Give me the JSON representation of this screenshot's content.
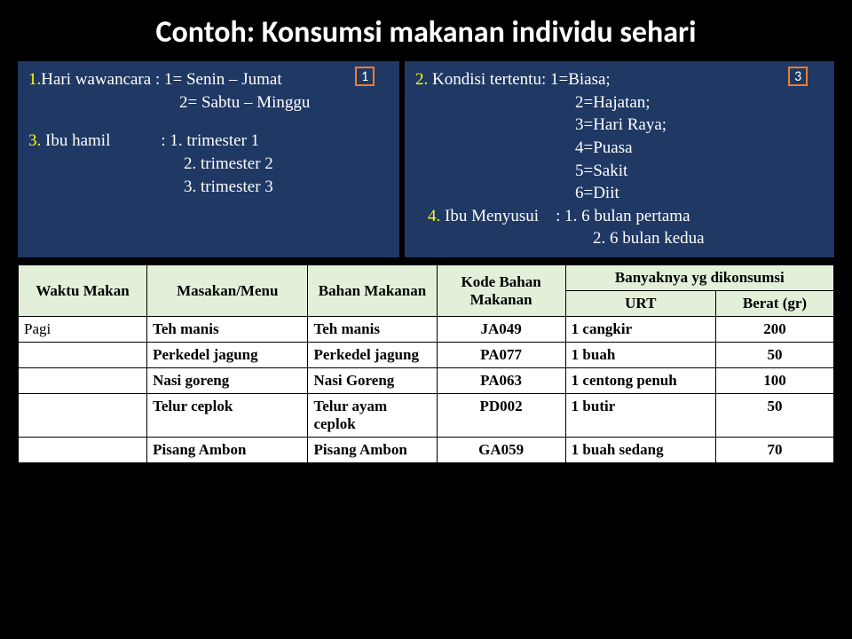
{
  "title": "Contoh: Konsumsi makanan individu sehari",
  "info": {
    "left": {
      "line1_a": "1.",
      "line1_b": "Hari wawancara",
      "line1_c": " :  1= Senin – Jumat",
      "line2": "2= Sabtu – Minggu",
      "line3_a": "3.",
      "line3_b": " Ibu hamil",
      "line3_c": "            : 1. trimester 1",
      "line4": "2. trimester 2",
      "line5": "3. trimester 3",
      "badge": "1"
    },
    "right": {
      "line1_a": "2.",
      "line1_b": " Kondisi tertentu:",
      "line1_c": " 1=Biasa;",
      "line2": "2=Hajatan;",
      "line3": "3=Hari Raya;",
      "line4": "4=Puasa",
      "line5": "5=Sakit",
      "line6": "6=Diit",
      "line7_a": "4.",
      "line7_b": " Ibu Menyusui",
      "line7_c": "    : 1. 6 bulan pertama",
      "line8": "2. 6 bulan kedua",
      "badge": "3"
    }
  },
  "table": {
    "headers": {
      "waktu": "Waktu Makan",
      "menu": "Masakan/Menu",
      "bahan": "Bahan Makanan",
      "kode": "Kode Bahan Makanan",
      "banyak": "Banyaknya yg dikonsumsi",
      "urt": "URT",
      "berat": "Berat (gr)"
    },
    "rows": [
      {
        "waktu": " Pagi",
        "menu": "Teh manis",
        "bahan": "Teh manis",
        "kode": "JA049",
        "urt": "1 cangkir",
        "berat": "200"
      },
      {
        "waktu": "",
        "menu": "Perkedel jagung",
        "bahan": "Perkedel jagung",
        "kode": "PA077",
        "urt": "1 buah",
        "berat": "50"
      },
      {
        "waktu": "",
        "menu": "Nasi goreng",
        "bahan": "Nasi Goreng",
        "kode": "PA063",
        "urt": "1 centong penuh",
        "berat": "100"
      },
      {
        "waktu": "",
        "menu": "Telur  ceplok",
        "bahan": "Telur ayam ceplok",
        "kode": "PD002",
        "urt": "1 butir",
        "berat": "50"
      },
      {
        "waktu": "",
        "menu": "Pisang Ambon",
        "bahan": "Pisang Ambon",
        "kode": "GA059",
        "urt": "1 buah sedang",
        "berat": "70"
      }
    ]
  }
}
